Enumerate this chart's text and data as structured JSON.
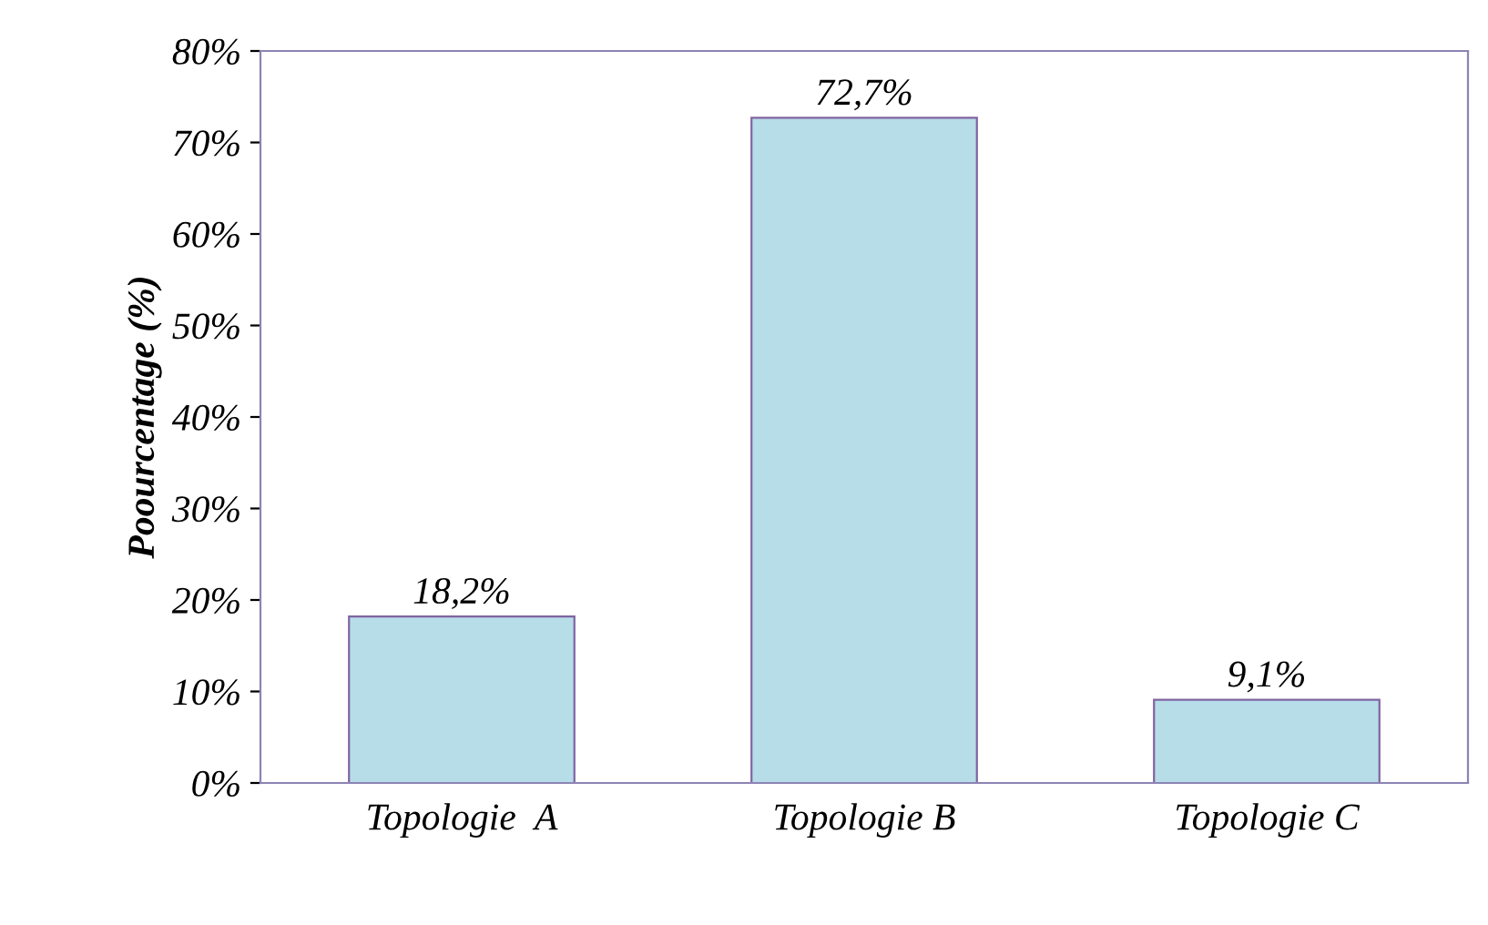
{
  "chart_data": {
    "type": "bar",
    "ylabel": "Poourcentage (%)",
    "categories": [
      "Topologie  A",
      "Topologie B",
      "Topologie C"
    ],
    "values": [
      18.2,
      72.7,
      9.1
    ],
    "value_labels": [
      "18,2%",
      "72,7%",
      "9,1%"
    ],
    "color": "#b7dde8",
    "ylim": [
      0,
      80
    ],
    "yticks": [
      {
        "value": 0,
        "label": "0%"
      },
      {
        "value": 10,
        "label": "10%"
      },
      {
        "value": 20,
        "label": "20%"
      },
      {
        "value": 30,
        "label": "30%"
      },
      {
        "value": 40,
        "label": "40%"
      },
      {
        "value": 50,
        "label": "50%"
      },
      {
        "value": 60,
        "label": "60%"
      },
      {
        "value": 70,
        "label": "70%"
      },
      {
        "value": 80,
        "label": "80%"
      }
    ],
    "grid": false
  }
}
